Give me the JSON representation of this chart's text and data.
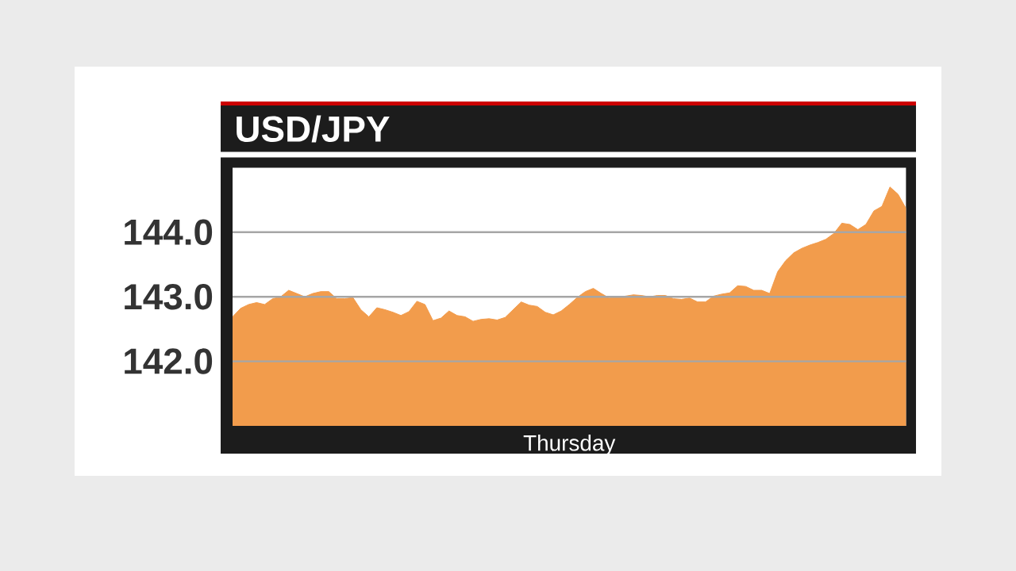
{
  "chart_data": {
    "type": "area",
    "title": "USD/JPY",
    "xlabel": "Thursday",
    "categories": [
      null,
      null,
      null,
      null,
      null,
      null,
      null,
      null,
      null,
      null,
      null,
      null,
      null,
      null,
      null,
      null,
      null,
      null,
      null,
      null,
      null,
      null,
      null,
      null,
      null,
      null,
      null,
      null,
      null,
      null,
      null,
      null,
      null,
      null,
      null,
      null,
      null,
      null,
      null,
      null,
      null,
      null,
      null,
      null,
      null,
      null,
      null,
      null,
      null,
      null,
      null,
      null,
      null,
      null,
      null,
      null,
      null,
      null,
      null,
      null,
      null,
      null,
      null,
      null,
      null,
      null,
      null,
      null,
      null,
      null,
      null,
      null,
      null,
      null,
      null,
      null,
      null,
      null,
      null,
      null,
      null,
      null,
      null,
      null,
      null
    ],
    "values": [
      142.69,
      142.82,
      142.88,
      142.91,
      142.88,
      142.97,
      143.0,
      143.1,
      143.05,
      143.0,
      143.05,
      143.08,
      143.08,
      142.97,
      142.97,
      142.99,
      142.8,
      142.69,
      142.83,
      142.8,
      142.76,
      142.71,
      142.77,
      142.93,
      142.88,
      142.63,
      142.67,
      142.78,
      142.71,
      142.69,
      142.62,
      142.65,
      142.66,
      142.64,
      142.68,
      142.8,
      142.92,
      142.87,
      142.85,
      142.76,
      142.72,
      142.78,
      142.88,
      142.99,
      143.08,
      143.13,
      143.05,
      142.98,
      143.0,
      143.01,
      143.03,
      143.02,
      143.0,
      143.02,
      143.02,
      142.97,
      142.96,
      142.98,
      142.92,
      142.92,
      143.01,
      143.04,
      143.06,
      143.17,
      143.16,
      143.1,
      143.1,
      143.05,
      143.39,
      143.56,
      143.68,
      143.75,
      143.8,
      143.84,
      143.89,
      143.98,
      144.14,
      144.12,
      144.04,
      144.12,
      144.33,
      144.4,
      144.7,
      144.59,
      144.37
    ],
    "color": "#f29c4c",
    "ylim": [
      141,
      145
    ],
    "yticks": [
      {
        "value": 142,
        "label": "142.0"
      },
      {
        "value": 143,
        "label": "143.0"
      },
      {
        "value": 144,
        "label": "144.0"
      }
    ],
    "grid": "y"
  }
}
